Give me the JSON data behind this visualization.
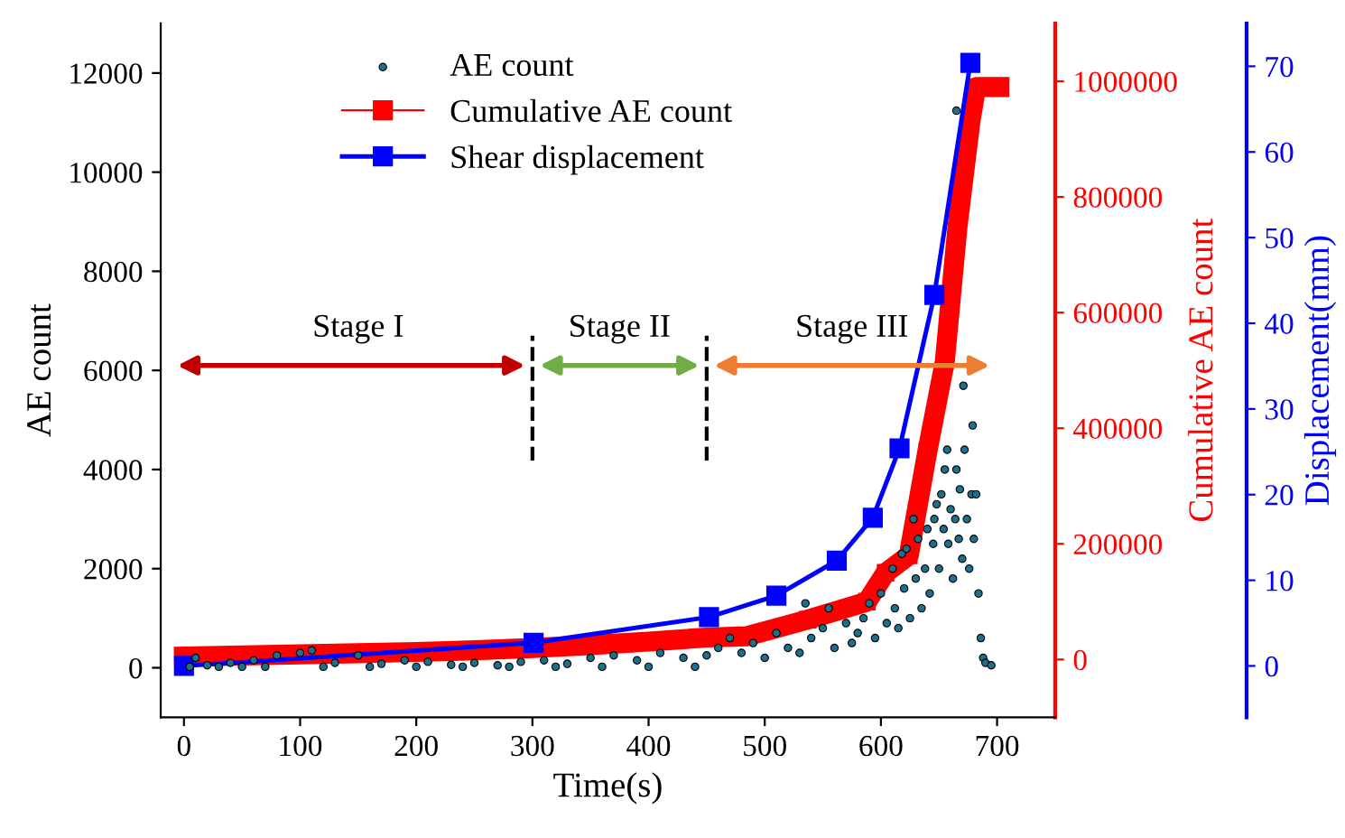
{
  "chart_data": {
    "type": "scatter",
    "xlabel": "Time(s)",
    "ylabel": "AE count",
    "y2label": "Cumulative AE count",
    "y3label": "Displacement(mm)",
    "xlim": [
      -20,
      750
    ],
    "xticks": [
      0,
      100,
      200,
      300,
      400,
      500,
      600,
      700
    ],
    "ylim": [
      -1000,
      13000
    ],
    "yticks": [
      0,
      2000,
      4000,
      6000,
      8000,
      10000,
      12000
    ],
    "y2lim": [
      -100000,
      1100000
    ],
    "y2ticks": [
      0,
      200000,
      400000,
      600000,
      800000,
      1000000
    ],
    "y3lim": [
      -6,
      75
    ],
    "y3ticks": [
      0,
      10,
      20,
      30,
      40,
      50,
      60,
      70
    ],
    "legend": "top left",
    "grid": false,
    "series": [
      {
        "name": "AE count",
        "color": "#1f6e8c",
        "marker": "circle",
        "x": [
          5,
          10,
          20,
          30,
          40,
          50,
          60,
          70,
          80,
          100,
          110,
          120,
          130,
          150,
          160,
          170,
          190,
          200,
          210,
          230,
          240,
          250,
          270,
          280,
          290,
          310,
          320,
          330,
          350,
          360,
          370,
          390,
          400,
          410,
          430,
          440,
          450,
          460,
          470,
          480,
          490,
          500,
          510,
          520,
          530,
          535,
          540,
          550,
          555,
          560,
          570,
          575,
          580,
          585,
          590,
          595,
          600,
          605,
          610,
          612,
          615,
          618,
          620,
          622,
          625,
          628,
          630,
          632,
          635,
          638,
          640,
          642,
          645,
          646,
          648,
          650,
          652,
          654,
          655,
          657,
          658,
          660,
          662,
          664,
          665,
          665,
          667,
          668,
          670,
          671,
          672,
          674,
          676,
          678,
          679,
          680,
          682,
          684,
          686,
          688,
          690,
          695
        ],
        "values": [
          20,
          200,
          50,
          20,
          100,
          20,
          150,
          20,
          250,
          300,
          350,
          20,
          100,
          250,
          20,
          80,
          150,
          20,
          120,
          60,
          20,
          100,
          50,
          20,
          120,
          150,
          20,
          80,
          200,
          20,
          250,
          150,
          20,
          300,
          200,
          20,
          250,
          400,
          600,
          300,
          500,
          200,
          700,
          400,
          300,
          1300,
          600,
          800,
          1200,
          400,
          900,
          500,
          700,
          1000,
          1300,
          600,
          1500,
          900,
          2000,
          1200,
          800,
          2300,
          1600,
          2400,
          1000,
          3000,
          1800,
          2600,
          1200,
          2000,
          2800,
          1500,
          2500,
          3000,
          3300,
          2000,
          3500,
          2800,
          4000,
          4400,
          2500,
          3200,
          1800,
          3000,
          4000,
          11240,
          2600,
          3600,
          2200,
          5690,
          4400,
          3000,
          2000,
          3500,
          4890,
          2600,
          3500,
          1500,
          600,
          200,
          100,
          50
        ]
      },
      {
        "name": "Cumulative AE count",
        "type": "line",
        "axis": "y2",
        "color": "#ff0000",
        "marker": "square",
        "x": [
          0,
          50,
          100,
          150,
          200,
          250,
          300,
          350,
          400,
          450,
          484,
          537,
          588,
          604,
          624,
          640,
          655,
          666,
          677,
          682,
          702
        ],
        "values": [
          5000,
          7000,
          9000,
          11000,
          13000,
          16000,
          20000,
          25000,
          31000,
          38000,
          40000,
          69000,
          100000,
          150000,
          180000,
          360000,
          515000,
          750000,
          930000,
          990000,
          990000
        ]
      },
      {
        "name": "Shear displacement",
        "type": "line",
        "axis": "y3",
        "color": "#0000ff",
        "marker": "square",
        "x": [
          0,
          301,
          452,
          510,
          562,
          593,
          616,
          646,
          677
        ],
        "values": [
          0,
          2.7,
          5.7,
          8.2,
          12.3,
          17.3,
          25.4,
          43.3,
          70.4
        ]
      }
    ],
    "ref_lines": [
      {
        "axis": "x",
        "value": 300,
        "line_style": "dashed",
        "color": "#000000"
      },
      {
        "axis": "x",
        "value": 450,
        "line_style": "dashed",
        "color": "#000000"
      }
    ],
    "annotations": [
      "Stage I",
      "Stage II",
      "Stage III"
    ]
  }
}
